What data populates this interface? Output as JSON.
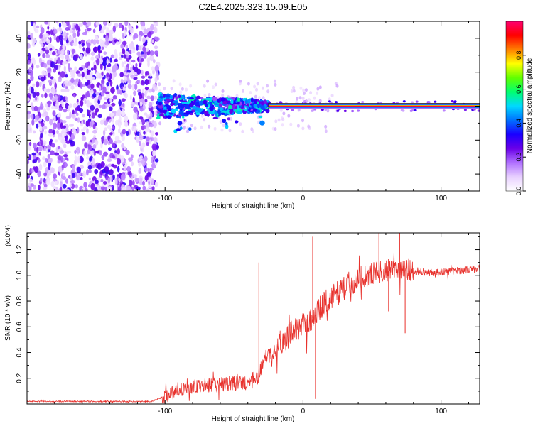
{
  "figure_title": "C2E4.2025.323.15.09.E05",
  "chart_data": [
    {
      "type": "heatmap",
      "title": "C2E4.2025.323.15.09.E05",
      "xlabel": "Height of straight line (km)",
      "ylabel": "Frequency (Hz)",
      "xlim": [
        -200,
        128
      ],
      "ylim": [
        -50,
        50
      ],
      "xticks": [
        -100,
        0,
        100
      ],
      "yticks": [
        -40,
        -20,
        0,
        20,
        40
      ],
      "colorbar": {
        "label": "Normalized spectral amplitude",
        "range": [
          0,
          1
        ],
        "ticks": [
          "0.0",
          "0.2",
          "0.4",
          "0.6",
          "0.8"
        ],
        "colors": [
          "#ffffff",
          "#e8d0ff",
          "#b070ff",
          "#6a00e8",
          "#1a00ff",
          "#0070ff",
          "#00d8ff",
          "#00ff70",
          "#60ff00",
          "#ffff00",
          "#ff8000",
          "#ff0000",
          "#ff0070"
        ]
      },
      "regions": [
        {
          "name": "noise",
          "x_range": [
            -200,
            -105
          ],
          "freq_range": [
            -50,
            50
          ],
          "amplitude": "0.1-0.25"
        },
        {
          "name": "signal-onset",
          "x_range": [
            -105,
            -25
          ],
          "freq_range": [
            -10,
            8
          ],
          "amplitude": "0.3-0.55"
        },
        {
          "name": "carrier-line",
          "x_range": [
            -25,
            128
          ],
          "freq_hz": 0,
          "amplitude": "0.9-1.0"
        }
      ]
    },
    {
      "type": "line",
      "xlabel": "Height of straight line (km)",
      "ylabel": "SNR (10 * v/v)",
      "y_multiplier": "(x10^4)",
      "xlim": [
        -200,
        128
      ],
      "ylim": [
        0,
        1.33
      ],
      "xticks": [
        -100,
        0,
        100
      ],
      "yticks": [
        0.2,
        0.4,
        0.6,
        0.8,
        1.0,
        1.2
      ],
      "line_color": "#e8322d",
      "series": [
        {
          "name": "SNR",
          "x": [
            -200,
            -110,
            -100,
            -90,
            -80,
            -70,
            -60,
            -50,
            -40,
            -33,
            -28,
            -20,
            -12,
            -5,
            2,
            8,
            15,
            25,
            35,
            45,
            55,
            65,
            75,
            85,
            95,
            105,
            115,
            128
          ],
          "y": [
            0.02,
            0.02,
            0.06,
            0.12,
            0.13,
            0.15,
            0.15,
            0.16,
            0.17,
            0.2,
            0.35,
            0.45,
            0.52,
            0.58,
            0.62,
            0.68,
            0.78,
            0.86,
            0.95,
            1.0,
            1.03,
            1.04,
            1.04,
            1.03,
            1.02,
            1.03,
            1.04,
            1.05
          ]
        }
      ],
      "spikes": [
        {
          "x": -32,
          "y": 1.1
        },
        {
          "x": 7,
          "y": 1.3
        },
        {
          "x": 9,
          "y": 0.04
        },
        {
          "x": 55,
          "y": 1.33
        },
        {
          "x": 62,
          "y": 0.72
        },
        {
          "x": 70,
          "y": 1.33
        },
        {
          "x": 74,
          "y": 0.55
        }
      ]
    }
  ]
}
